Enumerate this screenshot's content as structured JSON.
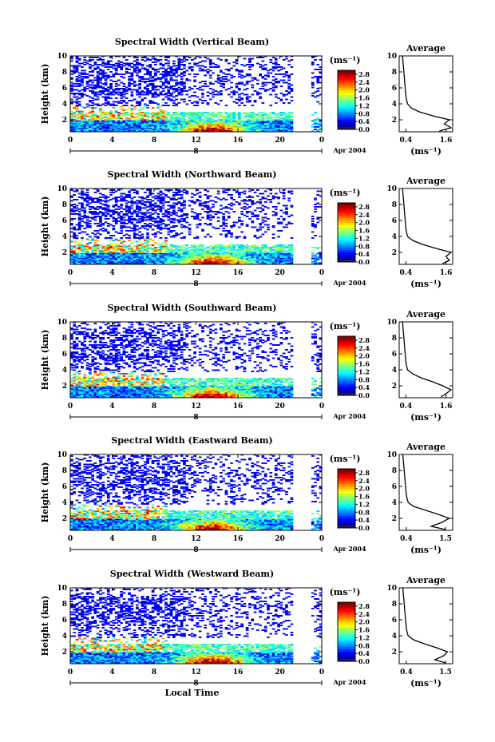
{
  "chart_data": [
    {
      "type": "heatmap",
      "title": "Spectral Width (Vertical Beam)",
      "ylabel": "Height (km)",
      "x_ticks": [
        "0",
        "4",
        "8",
        "12",
        "16",
        "20",
        "0"
      ],
      "y_ticks": [
        "2",
        "4",
        "6",
        "8",
        "10"
      ],
      "xlim": [
        0,
        24
      ],
      "ylim": [
        0.5,
        10
      ],
      "date_label": "Apr 2004",
      "day_label": "8",
      "colorbar": {
        "unit": "(ms⁻¹)",
        "ticks": [
          "0.0",
          "0.4",
          "0.8",
          "1.2",
          "1.6",
          "2.0",
          "2.4",
          "2.8"
        ],
        "range": [
          0,
          3.0
        ]
      },
      "average": {
        "title": "Average",
        "xlabel": "(ms⁻¹)",
        "x_ticks": [
          "0.4",
          "1.6"
        ],
        "y_ticks": [
          "2",
          "4",
          "6",
          "8",
          "10"
        ],
        "xlim": [
          0.2,
          1.8
        ],
        "height": [
          0.6,
          1.0,
          1.5,
          2.0,
          2.5,
          3.0,
          3.5,
          4.0,
          4.5,
          5.0,
          6.0,
          7.0,
          8.0,
          9.0,
          10.0
        ],
        "width": [
          1.4,
          1.75,
          1.55,
          1.7,
          1.2,
          0.8,
          0.55,
          0.45,
          0.42,
          0.4,
          0.38,
          0.36,
          0.34,
          0.32,
          0.3
        ]
      }
    },
    {
      "type": "heatmap",
      "title": "Spectral Width (Northward Beam)",
      "ylabel": "Height (km)",
      "x_ticks": [
        "0",
        "4",
        "8",
        "12",
        "16",
        "20",
        "0"
      ],
      "y_ticks": [
        "2",
        "4",
        "6",
        "8",
        "10"
      ],
      "xlim": [
        0,
        24
      ],
      "ylim": [
        0.5,
        10
      ],
      "date_label": "Apr 2004",
      "day_label": "8",
      "colorbar": {
        "unit": "(ms⁻¹)",
        "ticks": [
          "0.0",
          "0.4",
          "0.8",
          "1.2",
          "1.6",
          "2.0",
          "2.4",
          "2.8"
        ],
        "range": [
          0,
          3.0
        ]
      },
      "average": {
        "title": "Average",
        "xlabel": "(ms⁻¹)",
        "x_ticks": [
          "0.4",
          "1.6"
        ],
        "y_ticks": [
          "2",
          "4",
          "6",
          "8",
          "10"
        ],
        "xlim": [
          0.2,
          1.8
        ],
        "height": [
          0.6,
          1.0,
          1.5,
          2.0,
          2.5,
          3.0,
          3.5,
          4.0,
          4.5,
          5.0,
          6.0,
          7.0,
          8.0,
          9.0,
          10.0
        ],
        "width": [
          1.5,
          1.7,
          1.6,
          1.75,
          1.3,
          0.9,
          0.6,
          0.45,
          0.42,
          0.4,
          0.38,
          0.36,
          0.34,
          0.32,
          0.3
        ]
      }
    },
    {
      "type": "heatmap",
      "title": "Spectral Width (Southward Beam)",
      "ylabel": "Height (km)",
      "x_ticks": [
        "0",
        "4",
        "8",
        "12",
        "16",
        "20",
        "0"
      ],
      "y_ticks": [
        "2",
        "4",
        "6",
        "8",
        "10"
      ],
      "xlim": [
        0,
        24
      ],
      "ylim": [
        0.5,
        10
      ],
      "date_label": "Apr 2004",
      "day_label": "8",
      "colorbar": {
        "unit": "(ms⁻¹)",
        "ticks": [
          "0.0",
          "0.4",
          "0.8",
          "1.2",
          "1.6",
          "2.0",
          "2.4",
          "2.8"
        ],
        "range": [
          0,
          3.0
        ]
      },
      "average": {
        "title": "Average",
        "xlabel": "(ms⁻¹)",
        "x_ticks": [
          "0.4",
          "1.6"
        ],
        "y_ticks": [
          "2",
          "4",
          "6",
          "8",
          "10"
        ],
        "xlim": [
          0.2,
          1.8
        ],
        "height": [
          0.6,
          1.0,
          1.5,
          2.0,
          2.5,
          3.0,
          3.5,
          4.0,
          4.5,
          5.0,
          6.0,
          7.0,
          8.0,
          9.0,
          10.0
        ],
        "width": [
          1.45,
          1.6,
          1.75,
          1.5,
          1.2,
          0.85,
          0.6,
          0.45,
          0.42,
          0.4,
          0.38,
          0.36,
          0.34,
          0.32,
          0.3
        ]
      }
    },
    {
      "type": "heatmap",
      "title": "Spectral Width (Eastward Beam)",
      "ylabel": "Height (km)",
      "x_ticks": [
        "0",
        "4",
        "8",
        "12",
        "16",
        "20",
        "0"
      ],
      "y_ticks": [
        "2",
        "4",
        "6",
        "8",
        "10"
      ],
      "xlim": [
        0,
        24
      ],
      "ylim": [
        0.5,
        10
      ],
      "date_label": "Apr 2004",
      "day_label": "8",
      "colorbar": {
        "unit": "(ms⁻¹)",
        "ticks": [
          "0.0",
          "0.4",
          "0.8",
          "1.2",
          "1.6",
          "2.0",
          "2.4",
          "2.8"
        ],
        "range": [
          0,
          3.0
        ]
      },
      "average": {
        "title": "Average",
        "xlabel": "(ms⁻¹)",
        "x_ticks": [
          "0.4",
          "1.5"
        ],
        "y_ticks": [
          "2",
          "4",
          "6",
          "8",
          "10"
        ],
        "xlim": [
          0.2,
          1.7
        ],
        "height": [
          0.6,
          1.0,
          1.5,
          2.0,
          2.5,
          3.0,
          3.5,
          4.0,
          4.5,
          5.0,
          6.0,
          7.0,
          8.0,
          9.0,
          10.0
        ],
        "width": [
          1.5,
          1.1,
          1.4,
          1.6,
          1.3,
          0.95,
          0.6,
          0.45,
          0.42,
          0.4,
          0.38,
          0.36,
          0.34,
          0.32,
          0.3
        ]
      }
    },
    {
      "type": "heatmap",
      "title": "Spectral Width (Westward Beam)",
      "ylabel": "Height (km)",
      "xlabel": "Local Time",
      "x_ticks": [
        "0",
        "4",
        "8",
        "12",
        "16",
        "20",
        "0"
      ],
      "y_ticks": [
        "2",
        "4",
        "6",
        "8",
        "10"
      ],
      "xlim": [
        0,
        24
      ],
      "ylim": [
        0.5,
        10
      ],
      "date_label": "Apr 2004",
      "day_label": "8",
      "colorbar": {
        "unit": "(ms⁻¹)",
        "ticks": [
          "0.0",
          "0.4",
          "0.8",
          "1.2",
          "1.6",
          "2.0",
          "2.4",
          "2.8"
        ],
        "range": [
          0,
          3.0
        ]
      },
      "average": {
        "title": "Average",
        "xlabel": "(ms⁻¹)",
        "x_ticks": [
          "0.4",
          "1.5"
        ],
        "y_ticks": [
          "2",
          "4",
          "6",
          "8",
          "10"
        ],
        "xlim": [
          0.2,
          1.7
        ],
        "height": [
          0.6,
          1.0,
          1.5,
          2.0,
          2.5,
          3.0,
          3.5,
          4.0,
          4.5,
          5.0,
          6.0,
          7.0,
          8.0,
          9.0,
          10.0
        ],
        "width": [
          1.5,
          1.2,
          1.45,
          1.55,
          1.25,
          0.9,
          0.6,
          0.45,
          0.42,
          0.4,
          0.38,
          0.36,
          0.34,
          0.32,
          0.3
        ]
      }
    }
  ]
}
